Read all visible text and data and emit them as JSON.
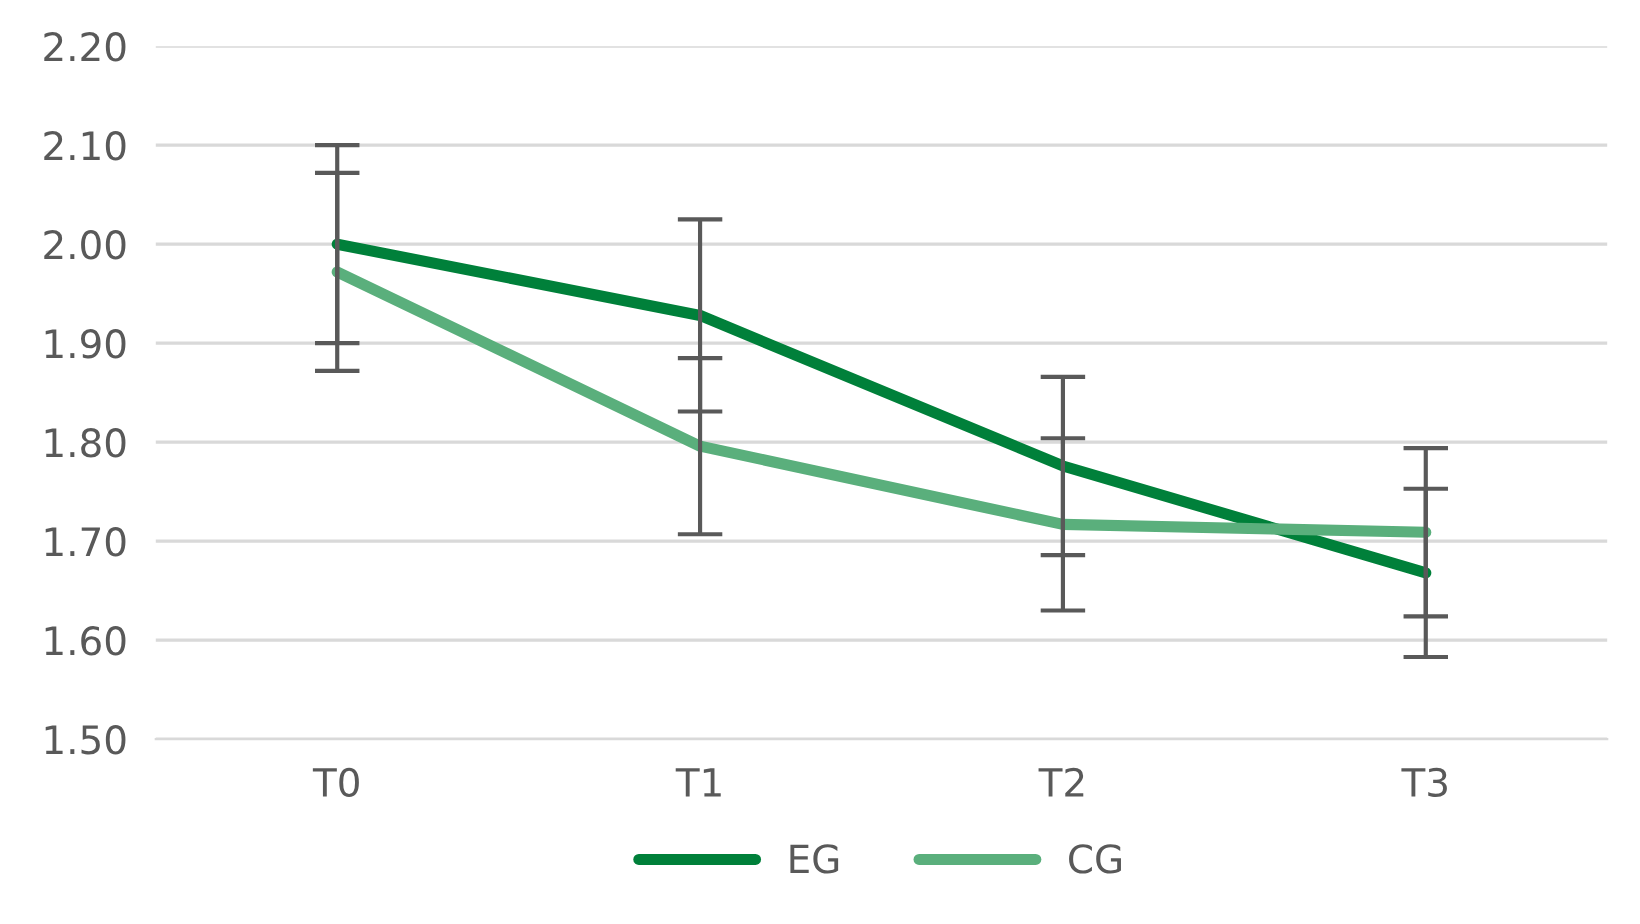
{
  "chart_data": {
    "type": "line",
    "categories": [
      "T0",
      "T1",
      "T2",
      "T3"
    ],
    "series": [
      {
        "name": "EG",
        "color": "#00803a",
        "values": [
          2.0,
          1.928,
          1.776,
          1.668
        ],
        "errors": [
          0.1,
          0.097,
          0.09,
          0.085
        ]
      },
      {
        "name": "CG",
        "color": "#5aaf7c",
        "values": [
          1.972,
          1.796,
          1.717,
          1.709
        ],
        "errors": [
          0.1,
          0.089,
          0.087,
          0.085
        ]
      }
    ],
    "ylim": [
      1.5,
      2.2
    ],
    "yticks": [
      {
        "value": 1.5,
        "label": "1.50"
      },
      {
        "value": 1.6,
        "label": "1.60"
      },
      {
        "value": 1.7,
        "label": "1.70"
      },
      {
        "value": 1.8,
        "label": "1.80"
      },
      {
        "value": 1.9,
        "label": "1.90"
      },
      {
        "value": 2.0,
        "label": "2.00"
      },
      {
        "value": 2.1,
        "label": "2.10"
      },
      {
        "value": 2.2,
        "label": "2.20"
      }
    ],
    "grid": "y",
    "legend": "bottom",
    "marker": "none",
    "line_style": "solid"
  }
}
